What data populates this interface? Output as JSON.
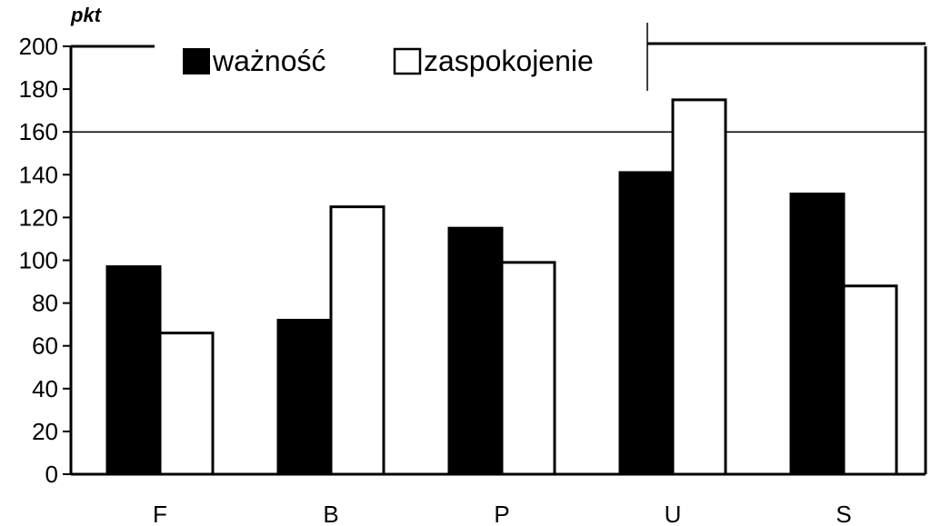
{
  "chart_data": {
    "type": "bar",
    "ylabel": "pkt",
    "ylim": [
      0,
      200
    ],
    "yticks": [
      "0",
      "20",
      "40",
      "60",
      "80",
      "100",
      "120",
      "140",
      "160",
      "180",
      "200"
    ],
    "categories": [
      "F",
      "B",
      "P",
      "U",
      "S"
    ],
    "series": [
      {
        "name": "ważność",
        "values": [
          97,
          72,
          115,
          141,
          131
        ],
        "color": "#000000"
      },
      {
        "name": "zaspokojenie",
        "values": [
          66,
          125,
          99,
          175,
          88
        ],
        "color": "#ffffff"
      }
    ],
    "reference_line": 160,
    "legend_position": "top"
  }
}
